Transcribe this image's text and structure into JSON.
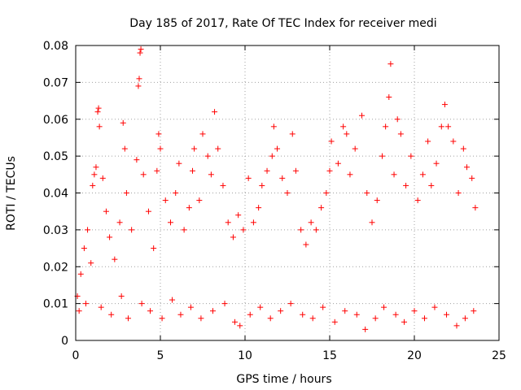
{
  "chart_data": {
    "type": "scatter",
    "title": "Day 185 of 2017, Rate Of TEC Index for receiver medi",
    "xlabel": "GPS time / hours",
    "ylabel": "ROTI / TECUs",
    "xlim": [
      0,
      25
    ],
    "ylim": [
      0,
      0.08
    ],
    "xticks": [
      0,
      5,
      10,
      15,
      20,
      25
    ],
    "xtick_labels": [
      "0",
      "5",
      "10",
      "15",
      "20",
      "25"
    ],
    "yticks": [
      0,
      0.01,
      0.02,
      0.03,
      0.04,
      0.05,
      0.06,
      0.07,
      0.08
    ],
    "ytick_labels": [
      "0",
      "0.01",
      "0.02",
      "0.03",
      "0.04",
      "0.05",
      "0.06",
      "0.07",
      "0.08"
    ],
    "grid": true,
    "marker": "plus",
    "marker_color": "#ff0000",
    "series": [
      {
        "name": "ROTI",
        "points": [
          [
            0.1,
            0.012
          ],
          [
            0.3,
            0.018
          ],
          [
            0.5,
            0.025
          ],
          [
            0.7,
            0.03
          ],
          [
            0.9,
            0.021
          ],
          [
            1.0,
            0.042
          ],
          [
            1.1,
            0.045
          ],
          [
            1.2,
            0.047
          ],
          [
            1.3,
            0.062
          ],
          [
            1.35,
            0.063
          ],
          [
            1.4,
            0.058
          ],
          [
            1.6,
            0.044
          ],
          [
            1.8,
            0.035
          ],
          [
            2.0,
            0.028
          ],
          [
            2.3,
            0.022
          ],
          [
            2.6,
            0.032
          ],
          [
            2.8,
            0.059
          ],
          [
            2.9,
            0.052
          ],
          [
            3.0,
            0.04
          ],
          [
            3.3,
            0.03
          ],
          [
            3.6,
            0.049
          ],
          [
            3.7,
            0.069
          ],
          [
            3.75,
            0.071
          ],
          [
            3.8,
            0.078
          ],
          [
            3.85,
            0.079
          ],
          [
            4.0,
            0.045
          ],
          [
            4.3,
            0.035
          ],
          [
            4.6,
            0.025
          ],
          [
            4.8,
            0.046
          ],
          [
            4.9,
            0.056
          ],
          [
            5.0,
            0.052
          ],
          [
            5.3,
            0.038
          ],
          [
            5.6,
            0.032
          ],
          [
            5.9,
            0.04
          ],
          [
            6.1,
            0.048
          ],
          [
            6.4,
            0.03
          ],
          [
            6.7,
            0.036
          ],
          [
            6.9,
            0.046
          ],
          [
            7.0,
            0.052
          ],
          [
            7.3,
            0.038
          ],
          [
            7.5,
            0.056
          ],
          [
            7.8,
            0.05
          ],
          [
            8.0,
            0.045
          ],
          [
            8.2,
            0.062
          ],
          [
            8.4,
            0.052
          ],
          [
            8.7,
            0.042
          ],
          [
            9.0,
            0.032
          ],
          [
            9.3,
            0.028
          ],
          [
            9.6,
            0.034
          ],
          [
            9.9,
            0.03
          ],
          [
            10.2,
            0.044
          ],
          [
            10.5,
            0.032
          ],
          [
            10.8,
            0.036
          ],
          [
            11.0,
            0.042
          ],
          [
            11.3,
            0.046
          ],
          [
            11.6,
            0.05
          ],
          [
            11.7,
            0.058
          ],
          [
            11.9,
            0.052
          ],
          [
            12.2,
            0.044
          ],
          [
            12.5,
            0.04
          ],
          [
            12.8,
            0.056
          ],
          [
            13.0,
            0.046
          ],
          [
            13.3,
            0.03
          ],
          [
            13.6,
            0.026
          ],
          [
            13.9,
            0.032
          ],
          [
            14.2,
            0.03
          ],
          [
            14.5,
            0.036
          ],
          [
            14.8,
            0.04
          ],
          [
            15.0,
            0.046
          ],
          [
            15.1,
            0.054
          ],
          [
            15.5,
            0.048
          ],
          [
            15.8,
            0.058
          ],
          [
            16.0,
            0.056
          ],
          [
            16.2,
            0.045
          ],
          [
            16.5,
            0.052
          ],
          [
            16.9,
            0.061
          ],
          [
            17.2,
            0.04
          ],
          [
            17.5,
            0.032
          ],
          [
            17.8,
            0.038
          ],
          [
            18.1,
            0.05
          ],
          [
            18.3,
            0.058
          ],
          [
            18.5,
            0.066
          ],
          [
            18.6,
            0.075
          ],
          [
            18.8,
            0.045
          ],
          [
            19.0,
            0.06
          ],
          [
            19.2,
            0.056
          ],
          [
            19.5,
            0.042
          ],
          [
            19.8,
            0.05
          ],
          [
            20.2,
            0.038
          ],
          [
            20.5,
            0.045
          ],
          [
            20.8,
            0.054
          ],
          [
            21.0,
            0.042
          ],
          [
            21.3,
            0.048
          ],
          [
            21.6,
            0.058
          ],
          [
            21.8,
            0.064
          ],
          [
            22.0,
            0.058
          ],
          [
            22.3,
            0.054
          ],
          [
            22.6,
            0.04
          ],
          [
            22.9,
            0.052
          ],
          [
            23.1,
            0.047
          ],
          [
            23.4,
            0.044
          ],
          [
            23.6,
            0.036
          ],
          [
            0.2,
            0.008
          ],
          [
            0.6,
            0.01
          ],
          [
            1.5,
            0.009
          ],
          [
            2.1,
            0.007
          ],
          [
            2.7,
            0.012
          ],
          [
            3.1,
            0.006
          ],
          [
            3.9,
            0.01
          ],
          [
            4.4,
            0.008
          ],
          [
            5.1,
            0.006
          ],
          [
            5.7,
            0.011
          ],
          [
            6.2,
            0.007
          ],
          [
            6.8,
            0.009
          ],
          [
            7.4,
            0.006
          ],
          [
            8.1,
            0.008
          ],
          [
            8.8,
            0.01
          ],
          [
            9.4,
            0.005
          ],
          [
            9.7,
            0.004
          ],
          [
            10.3,
            0.007
          ],
          [
            10.9,
            0.009
          ],
          [
            11.5,
            0.006
          ],
          [
            12.1,
            0.008
          ],
          [
            12.7,
            0.01
          ],
          [
            13.4,
            0.007
          ],
          [
            14.0,
            0.006
          ],
          [
            14.6,
            0.009
          ],
          [
            15.3,
            0.005
          ],
          [
            15.9,
            0.008
          ],
          [
            16.6,
            0.007
          ],
          [
            17.1,
            0.003
          ],
          [
            17.7,
            0.006
          ],
          [
            18.2,
            0.009
          ],
          [
            18.9,
            0.007
          ],
          [
            19.4,
            0.005
          ],
          [
            20.0,
            0.008
          ],
          [
            20.6,
            0.006
          ],
          [
            21.2,
            0.009
          ],
          [
            21.9,
            0.007
          ],
          [
            22.5,
            0.004
          ],
          [
            23.0,
            0.006
          ],
          [
            23.5,
            0.008
          ]
        ]
      }
    ]
  }
}
